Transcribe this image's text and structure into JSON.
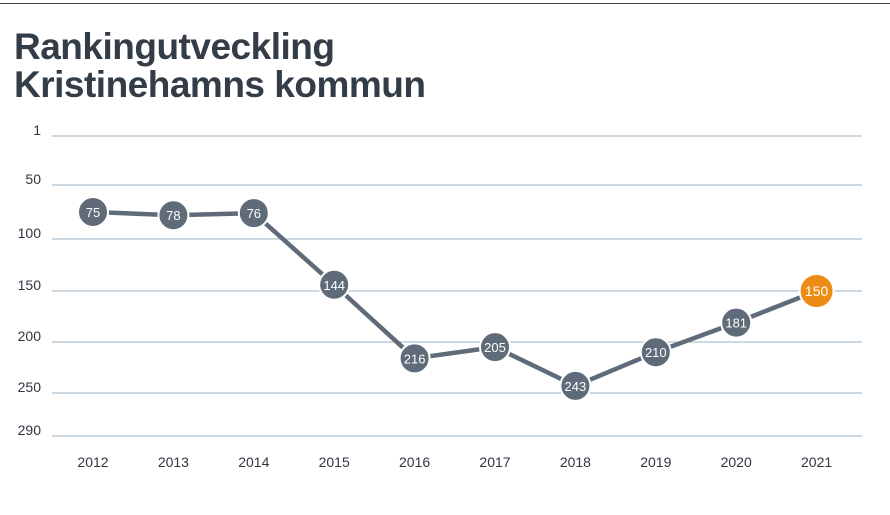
{
  "header": {
    "title_line1": "Rankingutveckling",
    "title_line2": "Kristinehamns kommun"
  },
  "colors": {
    "series": "#5f6b78",
    "highlight": "#ec8c15",
    "gridline": "#9eb0c0",
    "title": "#333d48",
    "text": "#2f3640"
  },
  "chart_data": {
    "type": "line",
    "title": "Rankingutveckling Kristinehamns kommun",
    "xlabel": "",
    "ylabel": "",
    "y_inverted": true,
    "ylim": [
      1,
      290
    ],
    "yticks": [
      "1",
      "50",
      "100",
      "150",
      "200",
      "250",
      "290"
    ],
    "ytick_values": [
      1,
      50,
      100,
      150,
      200,
      250,
      290
    ],
    "grid": true,
    "legend": "none",
    "categories": [
      "2012",
      "2013",
      "2014",
      "2015",
      "2016",
      "2017",
      "2018",
      "2019",
      "2020",
      "2021"
    ],
    "series": [
      {
        "values": [
          75,
          78,
          76,
          144,
          216,
          205,
          243,
          210,
          181,
          150
        ],
        "labels": [
          "75",
          "78",
          "76",
          "144",
          "216",
          "205",
          "243",
          "210",
          "181",
          "150"
        ],
        "highlight_last": true
      }
    ]
  }
}
